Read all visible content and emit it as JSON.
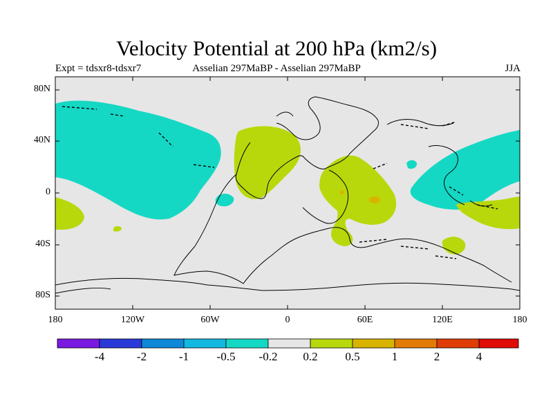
{
  "title": "Velocity Potential at 200 hPa (km2/s)",
  "subtitle_left": "Expt = tdsxr8-tdsxr7",
  "subtitle_center": "Asselian 297MaBP - Asselian 297MaBP",
  "subtitle_right": "JJA",
  "y_axis_labels": [
    "80N",
    "40N",
    "0",
    "40S",
    "80S"
  ],
  "x_axis_labels": [
    "180",
    "120W",
    "60W",
    "0",
    "60E",
    "120E",
    "180"
  ],
  "colorbar": {
    "labels": [
      "-4",
      "-2",
      "-1",
      "-0.5",
      "-0.2",
      "0.2",
      "0.5",
      "1",
      "2",
      "4"
    ],
    "colors": [
      "#7a1ae0",
      "#2a3ad8",
      "#0f88d8",
      "#12b8e0",
      "#14d8c4",
      "#e6e6e6",
      "#b8d80c",
      "#d8b400",
      "#e27a06",
      "#e03c06",
      "#e00c06"
    ]
  },
  "colors": {
    "background": "#e6e6e6",
    "negative_fill": "#14d8c4",
    "positive_fill": "#b8d80c",
    "strong_positive_fill": "#d8b400"
  }
}
